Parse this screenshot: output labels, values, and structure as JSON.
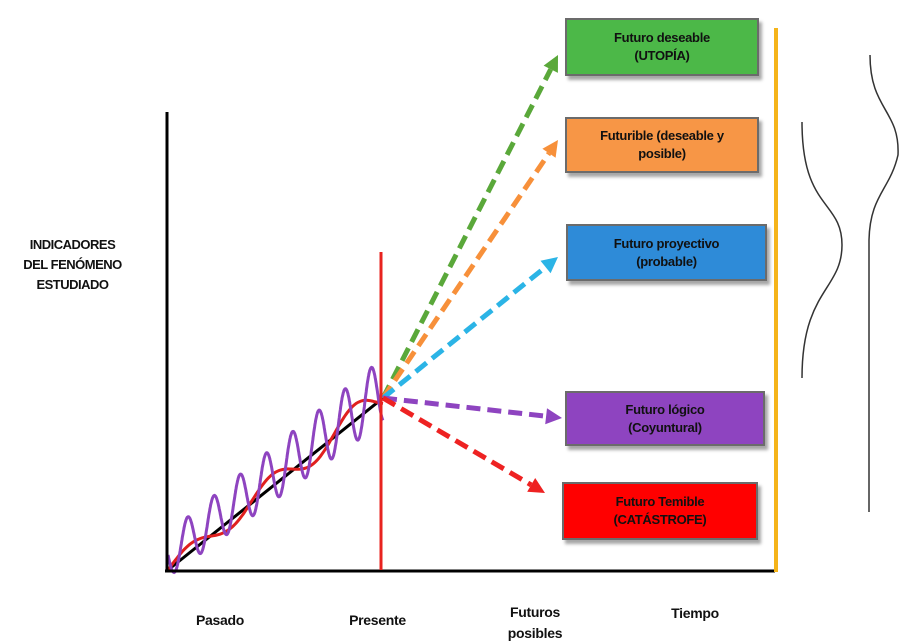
{
  "y_axis_label": [
    "INDICADORES",
    "DEL FENÓMENO",
    "ESTUDIADO"
  ],
  "x_labels": {
    "pasado": "Pasado",
    "presente": "Presente",
    "futuros_posibles": "Futuros posibles",
    "tiempo": "Tiempo"
  },
  "futures": [
    {
      "line1": "Futuro deseable",
      "line2": "(UTOPÍA)",
      "color": "#4cb848"
    },
    {
      "line1": "Futurible (deseable y",
      "line2": "posible)",
      "color": "#f79646"
    },
    {
      "line1": "Futuro proyectivo",
      "line2": "(probable)",
      "color": "#2e8bd8"
    },
    {
      "line1": "Futuro lógico",
      "line2": "(Coyuntural)",
      "color": "#8e44c0"
    },
    {
      "line1": "Futuro Temible",
      "line2": "(CATÁSTROFE)",
      "color": "#ff0000"
    }
  ],
  "colors": {
    "axis": "#000000",
    "present_line": "#e8231f",
    "trend_line": "#000000",
    "smoothed_curve": "#e0201e",
    "oscillation_curve": "#8e44c0",
    "arrow_green": "#5aa83a",
    "arrow_orange": "#f7903a",
    "arrow_blue": "#2bb4e6",
    "arrow_purple": "#8e44c0",
    "arrow_red": "#ee2222",
    "bracket_line": "#f5b41a",
    "bell_curve": "#333333"
  }
}
